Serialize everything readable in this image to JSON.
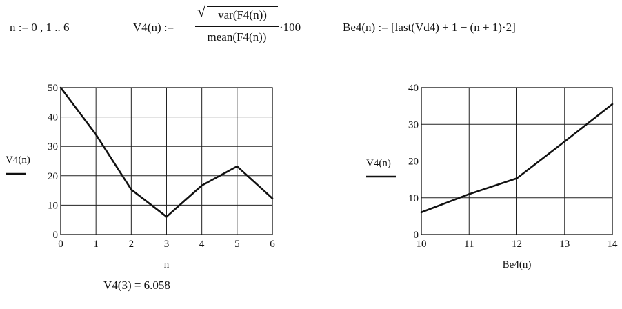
{
  "equations": {
    "n_def": "n := 0 , 1 .. 6",
    "v4_lhs": "V4(n) :=",
    "v4_numerator": "var(F4(n))",
    "v4_denominator": "mean(F4(n))",
    "v4_factor": "·100",
    "be4_def": "Be4(n) := [last(Vd4) + 1 − (n + 1)·2]"
  },
  "result": {
    "text": "V4(3) = 6.058"
  },
  "chart_data": [
    {
      "type": "line",
      "xlabel": "n",
      "ylabel": "V4(n)",
      "x": [
        0,
        1,
        2,
        3,
        4,
        5,
        6
      ],
      "series": [
        {
          "values": [
            50,
            34,
            15.3,
            6.058,
            16.7,
            23.2,
            12.3
          ]
        }
      ],
      "xlim": [
        0,
        6
      ],
      "ylim": [
        0,
        50
      ],
      "xticks": [
        0,
        1,
        2,
        3,
        4,
        5,
        6
      ],
      "yticks": [
        0,
        10,
        20,
        30,
        40,
        50
      ],
      "grid": true
    },
    {
      "type": "line",
      "xlabel": "Be4(n)",
      "ylabel": "V4(n)",
      "x": [
        10,
        11,
        12,
        13,
        14
      ],
      "series": [
        {
          "values": [
            6.058,
            11,
            15.3,
            25.3,
            35.5
          ]
        }
      ],
      "xlim": [
        10,
        14
      ],
      "ylim": [
        0,
        40
      ],
      "xticks": [
        10,
        11,
        12,
        13,
        14
      ],
      "yticks": [
        0,
        10,
        20,
        30,
        40
      ],
      "grid": true
    }
  ]
}
